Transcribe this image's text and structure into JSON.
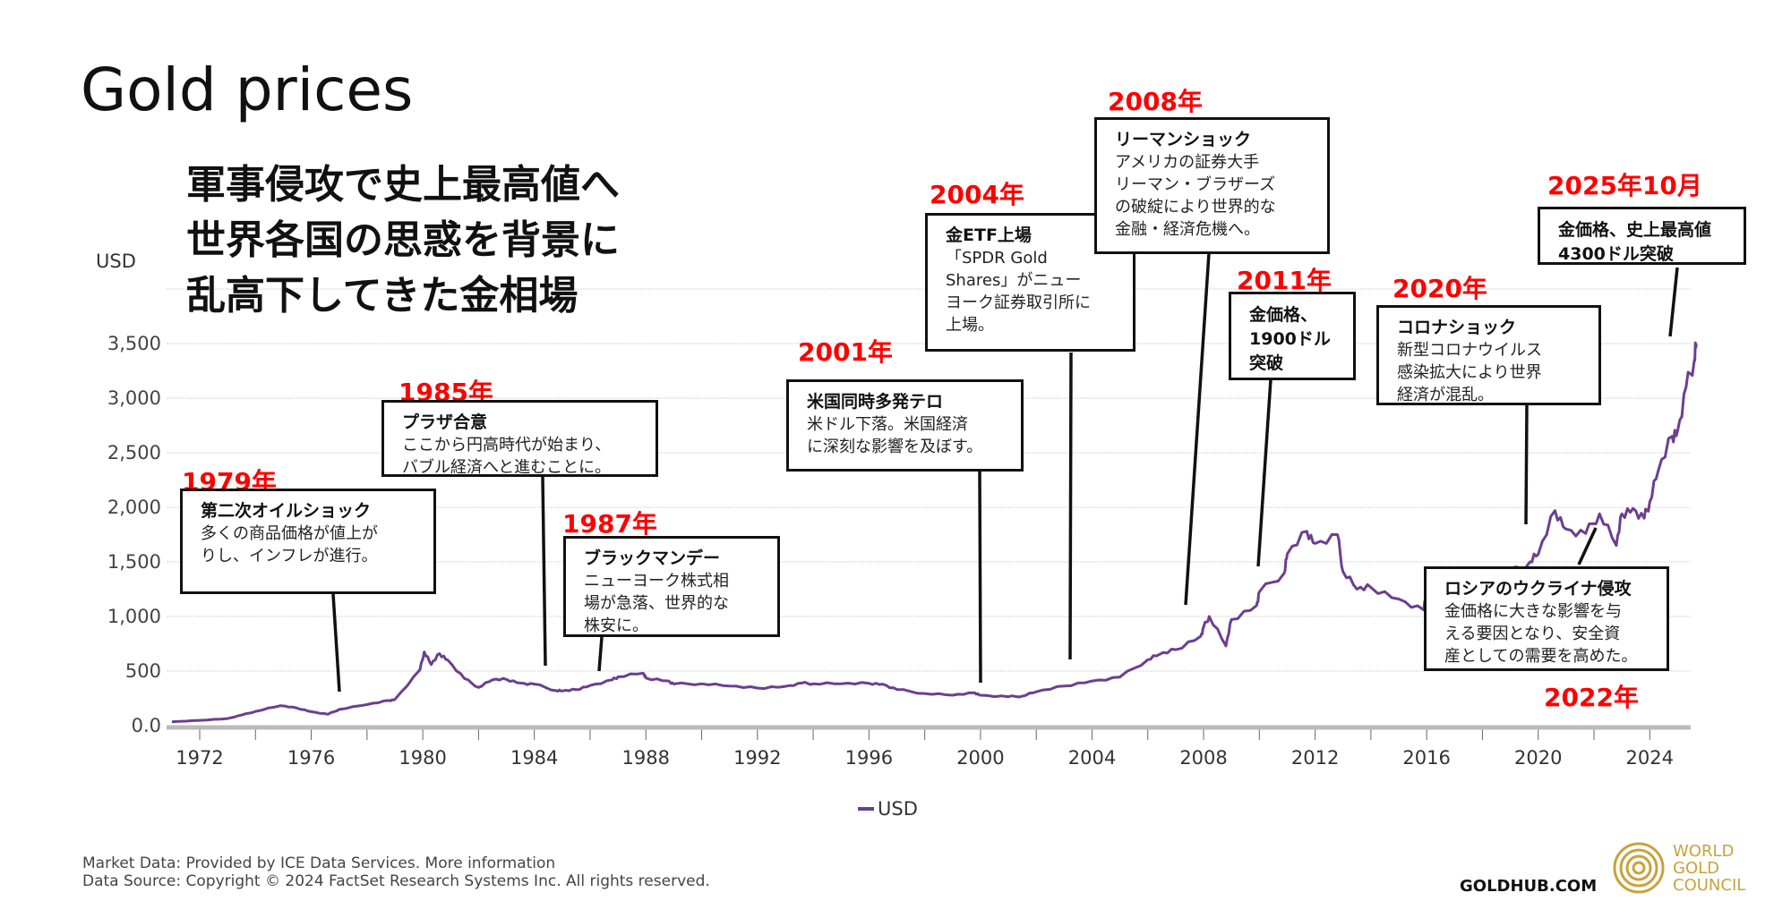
{
  "header": {
    "title": "Gold prices",
    "jp_heading": [
      "軍事侵攻で史上最高値へ",
      "世界各国の思惑を背景に",
      "乱高下してきた金相場"
    ]
  },
  "chart_data": {
    "type": "line",
    "title": "Gold prices",
    "ylabel": "USD",
    "xlabel": "",
    "ylim": [
      0,
      4000
    ],
    "xlim": [
      1971,
      2025.67
    ],
    "grid": true,
    "legend_placement": "bottom",
    "line_color": "#6b3f8f",
    "y_ticks": [
      0,
      500,
      1000,
      1500,
      2000,
      2500,
      3000,
      3500
    ],
    "y_tick_labels": [
      "0.0",
      "500",
      "1,000",
      "1,500",
      "2,000",
      "2,500",
      "3,000",
      "3,500"
    ],
    "x_ticks": [
      1972,
      1976,
      1980,
      1984,
      1988,
      1992,
      1996,
      2000,
      2004,
      2008,
      2012,
      2016,
      2020,
      2024
    ],
    "x_tick_labels": [
      "1972",
      "1976",
      "1980",
      "1984",
      "1988",
      "1992",
      "1996",
      "2000",
      "2004",
      "2008",
      "2012",
      "2016",
      "2020",
      "2024"
    ],
    "series": [
      {
        "name": "USD",
        "x": [
          1971,
          1972,
          1973,
          1973.5,
          1974,
          1974.9,
          1975.5,
          1976,
          1976.6,
          1977,
          1978,
          1978.8,
          1979,
          1979.9,
          1980.05,
          1980.3,
          1980.6,
          1980.9,
          1981.5,
          1982,
          1982.5,
          1983,
          1983.5,
          1984,
          1984.8,
          1985,
          1985.5,
          1986,
          1986.8,
          1987,
          1987.9,
          1988,
          1988.8,
          1989,
          1990,
          1991,
          1992,
          1993,
          1993.6,
          1994,
          1995,
          1996,
          1996.5,
          1997,
          1998,
          1999,
          1999.8,
          2000,
          2001,
          2001.5,
          2002,
          2003,
          2004,
          2005,
          2006,
          2006.4,
          2007,
          2007.9,
          2008,
          2008.2,
          2008.8,
          2009,
          2009.9,
          2010,
          2010.9,
          2011,
          2011.7,
          2012,
          2012.8,
          2013,
          2013.5,
          2014,
          2015,
          2015.9,
          2016,
          2016.5,
          2017,
          2018,
          2019,
          2019.7,
          2020,
          2020.6,
          2021,
          2021.7,
          2022.2,
          2022.8,
          2023,
          2023.4,
          2023.8,
          2024,
          2024.3,
          2024.8,
          2025,
          2025.3,
          2025.6,
          2025.67
        ],
        "values": [
          35,
          48,
          65,
          97,
          130,
          183,
          160,
          128,
          104,
          148,
          193,
          230,
          240,
          512,
          675,
          560,
          660,
          600,
          430,
          350,
          420,
          424,
          390,
          380,
          320,
          317,
          330,
          368,
          420,
          447,
          480,
          437,
          410,
          381,
          384,
          362,
          344,
          360,
          390,
          384,
          384,
          388,
          380,
          331,
          294,
          279,
          300,
          279,
          265,
          270,
          310,
          363,
          409,
          445,
          604,
          650,
          696,
          820,
          900,
          1000,
          730,
          972,
          1100,
          1225,
          1400,
          1572,
          1780,
          1669,
          1750,
          1411,
          1250,
          1266,
          1160,
          1060,
          1250,
          1340,
          1257,
          1268,
          1393,
          1500,
          1570,
          1970,
          1800,
          1760,
          1940,
          1650,
          1940,
          1990,
          1900,
          2050,
          2330,
          2650,
          2700,
          3100,
          3350,
          3500
        ]
      }
    ]
  },
  "annotations": [
    {
      "year": "1979年",
      "heading": "第二次オイルショック",
      "body": [
        "多くの商品価格が値上が",
        "りし、インフレが進行。"
      ]
    },
    {
      "year": "1985年",
      "heading": "プラザ合意",
      "body": [
        "ここから円高時代が始まり、",
        "バブル経済へと進むことに。"
      ]
    },
    {
      "year": "1987年",
      "heading": "ブラックマンデー",
      "body": [
        "ニューヨーク株式相",
        "場が急落、世界的な",
        "株安に。"
      ]
    },
    {
      "year": "2001年",
      "heading": "米国同時多発テロ",
      "body": [
        "米ドル下落。米国経済",
        "に深刻な影響を及ぼす。"
      ]
    },
    {
      "year": "2004年",
      "heading": "金ETF上場",
      "body": [
        "「SPDR Gold",
        "Shares」がニュー",
        "ヨーク証券取引所に",
        "上場。"
      ]
    },
    {
      "year": "2008年",
      "heading": "リーマンショック",
      "body": [
        "アメリカの証券大手",
        "リーマン・ブラザーズ",
        "の破綻により世界的な",
        "金融・経済危機へ。"
      ]
    },
    {
      "year": "2011年",
      "heading": "金価格、\n1900ドル\n突破",
      "body": []
    },
    {
      "year": "2020年",
      "heading": "コロナショック",
      "body": [
        "新型コロナウイルス",
        "感染拡大により世界",
        "経済が混乱。"
      ]
    },
    {
      "year": "2025年10月",
      "heading": "金価格、史上最高値\n4300ドル突破",
      "body": []
    },
    {
      "year": "2022年",
      "heading": "ロシアのウクライナ侵攻",
      "body": [
        "金価格に大きな影響を与",
        "える要因となり、安全資",
        "産としての需要を高めた。"
      ]
    }
  ],
  "legend": {
    "label": "USD"
  },
  "footer": {
    "line1": "Market Data: Provided by ICE Data Services. More information",
    "line2": "Data Source: Copyright © 2024 FactSet Research Systems Inc. All rights reserved.",
    "site": "GOLDHUB.COM",
    "logo_text": [
      "WORLD",
      "GOLD",
      "COUNCIL"
    ]
  },
  "colors": {
    "line": "#6b3f8f",
    "year_label": "#ff0000",
    "logo": "#c9a23c"
  }
}
